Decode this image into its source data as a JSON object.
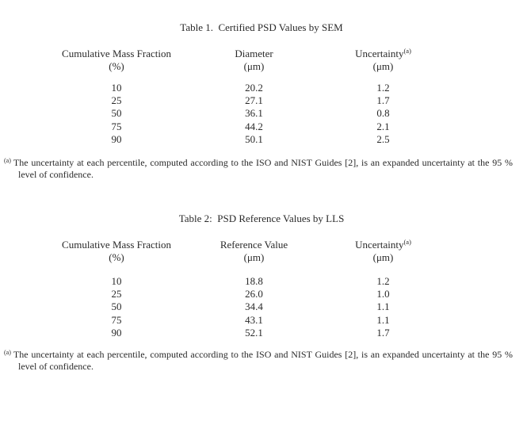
{
  "page": {
    "background_color": "#ffffff",
    "text_color": "#2a2a2a"
  },
  "tables": [
    {
      "title": "Table 1.  Certified PSD Values by SEM",
      "columns": [
        {
          "label": "Cumulative Mass Fraction",
          "unit": "(%)"
        },
        {
          "label": "Diameter",
          "unit": "(μm)"
        },
        {
          "label": "Uncertainty",
          "sup": "(a)",
          "unit": "(μm)"
        }
      ],
      "rows": [
        [
          "10",
          "20.2",
          "1.2"
        ],
        [
          "25",
          "27.1",
          "1.7"
        ],
        [
          "50",
          "36.1",
          "0.8"
        ],
        [
          "75",
          "44.2",
          "2.1"
        ],
        [
          "90",
          "50.1",
          "2.5"
        ]
      ],
      "footnote": {
        "marker": "(a)",
        "text": "The uncertainty at each percentile, computed according to the ISO and NIST Guides [2], is an expanded uncertainty at the 95 % level of confidence."
      }
    },
    {
      "title": "Table 2:  PSD Reference Values by LLS",
      "columns": [
        {
          "label": "Cumulative Mass Fraction",
          "unit": "(%)"
        },
        {
          "label": "Reference Value",
          "unit": "(μm)"
        },
        {
          "label": "Uncertainty",
          "sup": "(a)",
          "unit": "(μm)"
        }
      ],
      "rows": [
        [
          "10",
          "18.8",
          "1.2"
        ],
        [
          "25",
          "26.0",
          "1.0"
        ],
        [
          "50",
          "34.4",
          "1.1"
        ],
        [
          "75",
          "43.1",
          "1.1"
        ],
        [
          "90",
          "52.1",
          "1.7"
        ]
      ],
      "footnote": {
        "marker": "(a)",
        "text": "The uncertainty at each percentile, computed according to the ISO and NIST Guides [2], is an expanded uncertainty at the 95 % level of confidence."
      }
    }
  ]
}
